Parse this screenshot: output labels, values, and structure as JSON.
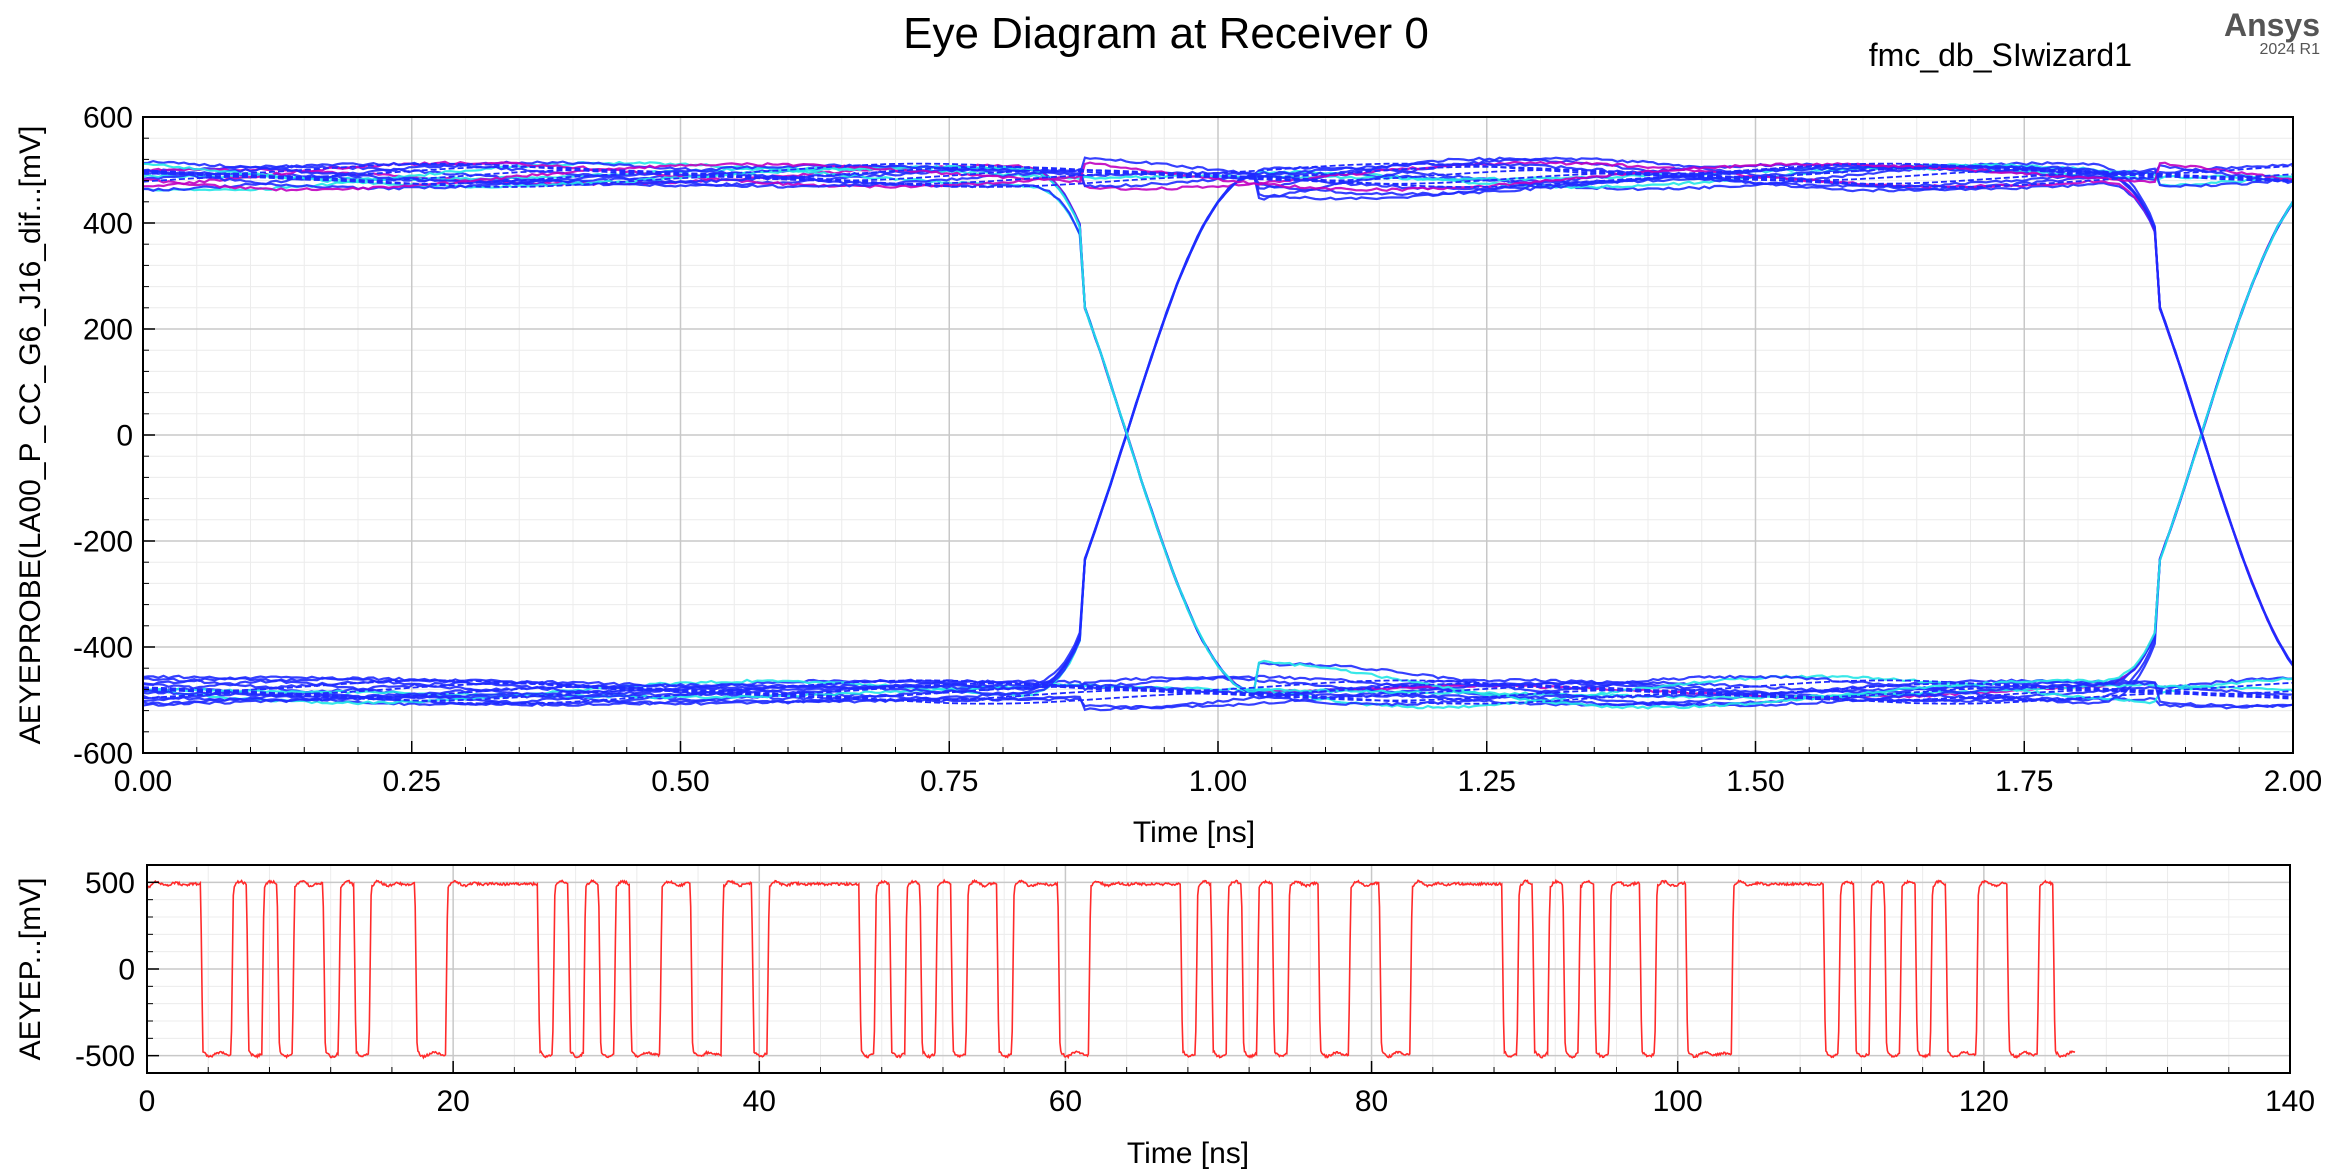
{
  "header": {
    "title": "Eye Diagram at Receiver 0",
    "design": "fmc_db_SIwizard1",
    "brand": "Ansys",
    "version": "2024 R1"
  },
  "colors": {
    "eye_main": "#1f2bff",
    "eye_cyan": "#22e6e6",
    "eye_magenta": "#c000c0",
    "trace": "#ff2a2a",
    "grid_major": "#c8c8c8",
    "grid_minor": "#ececec"
  },
  "chart_data": [
    {
      "type": "line",
      "name": "eye-diagram",
      "ylabel": "AEYEPROBE(LA00_P_CC_G6_J16_dif...[mV]",
      "xlabel": "Time [ns]",
      "xlim": [
        0,
        2
      ],
      "ylim": [
        -600,
        600
      ],
      "xticks": [
        0,
        0.25,
        0.5,
        0.75,
        1,
        1.25,
        1.5,
        1.75,
        2
      ],
      "xtick_labels": [
        "0.00",
        "0.25",
        "0.50",
        "0.75",
        "1.00",
        "1.25",
        "1.50",
        "1.75",
        "2.00"
      ],
      "yticks": [
        600,
        400,
        200,
        0,
        -200,
        -400,
        -600
      ],
      "ytick_labels": [
        "600",
        "400",
        "200",
        "0",
        "-200",
        "-400",
        "-600"
      ],
      "high_level_mV": 490,
      "low_level_mV": -485,
      "crossing_times_ns": [
        0.875,
        1.875
      ],
      "crossing_level_mV": 0
    },
    {
      "type": "line",
      "name": "waveform",
      "ylabel": "AEYEP...[mV]",
      "xlabel": "Time [ns]",
      "xlim": [
        0,
        140
      ],
      "ylim": [
        -600,
        600
      ],
      "xticks": [
        0,
        20,
        40,
        60,
        80,
        100,
        120,
        140
      ],
      "xtick_labels": [
        "0",
        "20",
        "40",
        "60",
        "80",
        "100",
        "120",
        "140"
      ],
      "yticks": [
        500,
        0,
        -500
      ],
      "ytick_labels": [
        "500",
        "0",
        "-500"
      ],
      "series": [
        {
          "name": "AEYEPROBE waveform",
          "start_ns": 0,
          "end_ns": 126,
          "edge_times_ns": [
            3.5,
            5.5,
            6.5,
            7.5,
            8.5,
            9.5,
            11.5,
            12.5,
            13.5,
            14.5,
            17.5,
            19.5,
            25.5,
            26.5,
            27.5,
            28.5,
            29.5,
            30.5,
            31.5,
            33.5,
            35.5,
            37.5,
            39.5,
            40.5,
            46.5,
            47.5,
            48.5,
            49.5,
            50.5,
            51.5,
            52.5,
            53.5,
            55.5,
            56.5,
            59.5,
            61.5,
            67.5,
            68.5,
            69.5,
            70.5,
            71.5,
            72.5,
            73.5,
            74.5,
            76.5,
            78.5,
            80.5,
            82.5,
            88.5,
            89.5,
            90.5,
            91.5,
            92.5,
            93.5,
            94.5,
            95.5,
            97.5,
            98.5,
            100.5,
            103.5,
            109.5,
            110.5,
            111.5,
            112.5,
            113.5,
            114.5,
            115.5,
            116.5,
            117.5,
            119.5,
            121.5,
            123.5,
            124.5
          ]
        }
      ]
    }
  ]
}
